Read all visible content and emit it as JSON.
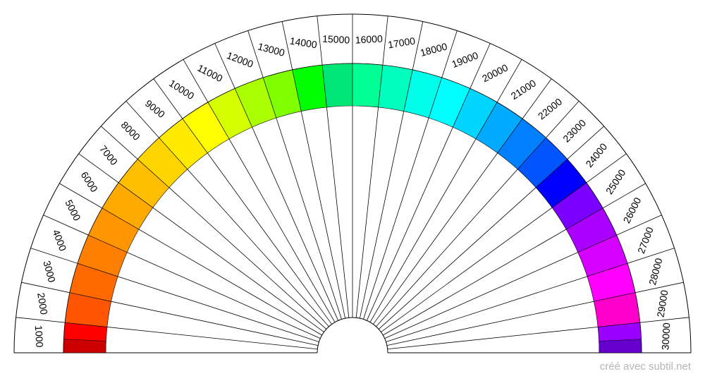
{
  "footer": "créé avec subtil.net",
  "chart_data": {
    "type": "radial-sector-chart",
    "labels": [
      "1000",
      "2000",
      "3000",
      "4000",
      "5000",
      "6000",
      "7000",
      "8000",
      "9000",
      "10000",
      "11000",
      "12000",
      "13000",
      "14000",
      "15000",
      "16000",
      "17000",
      "18000",
      "19000",
      "20000",
      "21000",
      "22000",
      "23000",
      "24000",
      "25000",
      "26000",
      "27000",
      "28000",
      "29000",
      "30000"
    ],
    "colors": [
      "#ff0000",
      "#ff5500",
      "#ff6a00",
      "#ff8000",
      "#ff9500",
      "#ffaa00",
      "#ffbf00",
      "#ffd500",
      "#ffea00",
      "#ffff00",
      "#d5ff00",
      "#aaff00",
      "#80ff00",
      "#00ff00",
      "#00e676",
      "#00ff95",
      "#00ffbf",
      "#00ffea",
      "#00ffff",
      "#00d5ff",
      "#00aaff",
      "#0080ff",
      "#0055ff",
      "#0000ff",
      "#7a00ff",
      "#aa00ff",
      "#d500ff",
      "#ff00ff",
      "#ff00cc",
      "#9900ff"
    ],
    "inner_ring_colors": [
      "#cc0000",
      "#6600cc"
    ]
  }
}
